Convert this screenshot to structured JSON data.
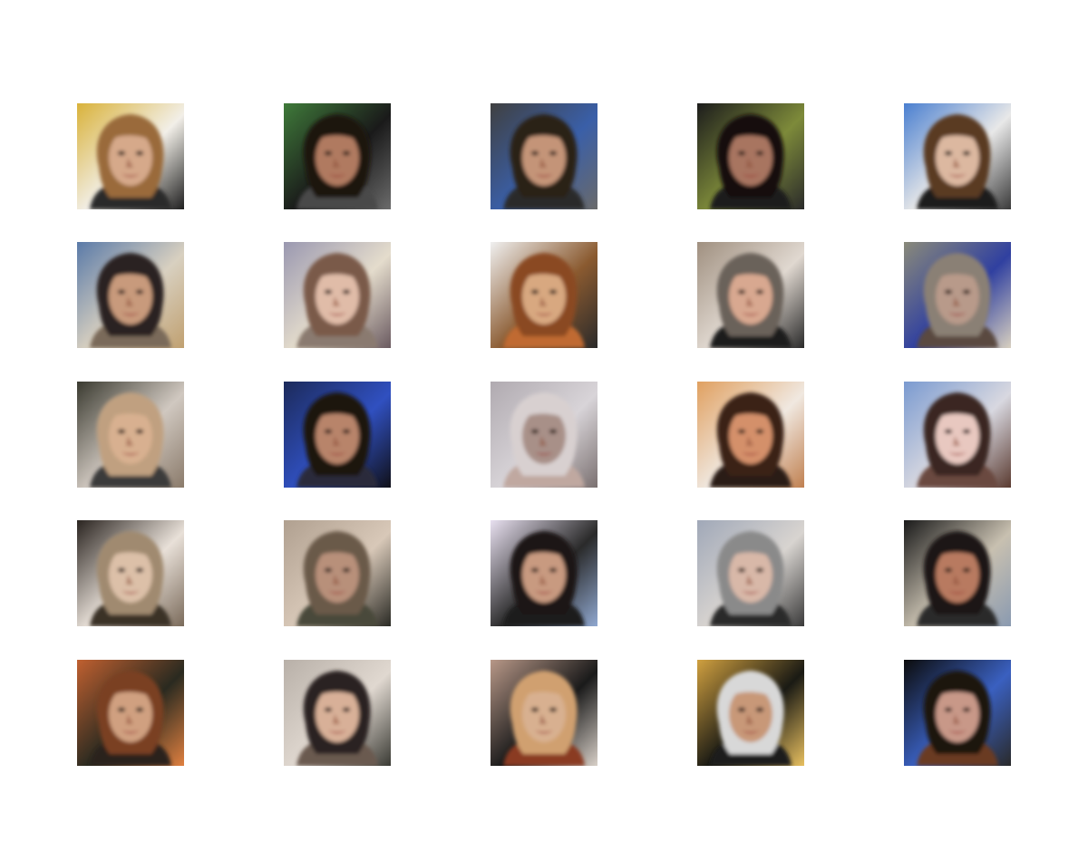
{
  "figure": {
    "grid": {
      "rows": 5,
      "cols": 5
    },
    "samples": [
      {
        "bg": [
          "#d9b23a",
          "#f2efe8",
          "#1f1f1f"
        ],
        "hair": "#9a6a3a",
        "skin": "#d6a98a",
        "shirt": "#2a2a2a"
      },
      {
        "bg": [
          "#3f7a3a",
          "#1a1a1a",
          "#6b6b6b"
        ],
        "hair": "#1c1410",
        "skin": "#b07a60",
        "shirt": "#4a4a4a"
      },
      {
        "bg": [
          "#404040",
          "#3a5fa8",
          "#6a6a6a"
        ],
        "hair": "#2a2018",
        "skin": "#c49478",
        "shirt": "#2b2b2b"
      },
      {
        "bg": [
          "#1c1c1c",
          "#7d8a3a",
          "#2a2a2a"
        ],
        "hair": "#140f0c",
        "skin": "#a87560",
        "shirt": "#1a1a1a"
      },
      {
        "bg": [
          "#4a7fd0",
          "#e8e8e8",
          "#3a3a3a"
        ],
        "hair": "#5a3a22",
        "skin": "#dcb8a0",
        "shirt": "#1f1f1f"
      },
      {
        "bg": [
          "#5a7aa8",
          "#d8d0c0",
          "#c0a070"
        ],
        "hair": "#2a2420",
        "skin": "#c89a7c",
        "shirt": "#7a6a5a"
      },
      {
        "bg": [
          "#9a98b0",
          "#e4dccc",
          "#6a5a60"
        ],
        "hair": "#7a5a48",
        "skin": "#e0bca8",
        "shirt": "#8a7a70"
      },
      {
        "bg": [
          "#f0f0f0",
          "#8a5a30",
          "#2a2a2a"
        ],
        "hair": "#8a4a22",
        "skin": "#d8a880",
        "shirt": "#c06a30"
      },
      {
        "bg": [
          "#a09080",
          "#e0d8d0",
          "#2a2a2a"
        ],
        "hair": "#6a625a",
        "skin": "#d8a890",
        "shirt": "#1a1a1a"
      },
      {
        "bg": [
          "#8a8a7a",
          "#3040a0",
          "#d8d0c0"
        ],
        "hair": "#8a8074",
        "skin": "#b89a8a",
        "shirt": "#5a4a40"
      },
      {
        "bg": [
          "#3a3a30",
          "#d0c8c0",
          "#8a7a6a"
        ],
        "hair": "#c0a080",
        "skin": "#d8b090",
        "shirt": "#3a3a3a"
      },
      {
        "bg": [
          "#1c2a5a",
          "#3050c0",
          "#101018"
        ],
        "hair": "#1a1410",
        "skin": "#b8846a",
        "shirt": "#2a2a3a"
      },
      {
        "bg": [
          "#b0aab0",
          "#d8d4d8",
          "#7a7070"
        ],
        "hair": "#d8d0d0",
        "skin": "#a89088",
        "shirt": "#c0a8a0"
      },
      {
        "bg": [
          "#e0a060",
          "#f0e8e0",
          "#c08050"
        ],
        "hair": "#3a2014",
        "skin": "#d4906a",
        "shirt": "#2a1a14"
      },
      {
        "bg": [
          "#7a9ad0",
          "#d8d8e0",
          "#5a3a30"
        ],
        "hair": "#3a2820",
        "skin": "#e8c8c0",
        "shirt": "#6a4a40"
      },
      {
        "bg": [
          "#2a2420",
          "#e8e0d8",
          "#7a6a5a"
        ],
        "hair": "#a08a70",
        "skin": "#dcc0a8",
        "shirt": "#3a3028"
      },
      {
        "bg": [
          "#b0a090",
          "#d8c8b8",
          "#2a2a24"
        ],
        "hair": "#6a5a4a",
        "skin": "#b8907a",
        "shirt": "#4a4a3a"
      },
      {
        "bg": [
          "#e8e0f0",
          "#2a2a2a",
          "#90a8d0"
        ],
        "hair": "#1a1414",
        "skin": "#c89a80",
        "shirt": "#1a1a1a"
      },
      {
        "bg": [
          "#a0a8b8",
          "#d8d4d0",
          "#3a3a3a"
        ],
        "hair": "#8a8a8a",
        "skin": "#d8b8a8",
        "shirt": "#2a2a2a"
      },
      {
        "bg": [
          "#1a1a1a",
          "#c8c0b0",
          "#8a9ab0"
        ],
        "hair": "#1a1814",
        "skin": "#b87a60",
        "shirt": "#2a2a2a"
      },
      {
        "bg": [
          "#c06030",
          "#2a2a20",
          "#e08040"
        ],
        "hair": "#7a4020",
        "skin": "#d0a080",
        "shirt": "#2a201a"
      },
      {
        "bg": [
          "#b8b0a8",
          "#e0d8d0",
          "#3a3a34"
        ],
        "hair": "#2a2420",
        "skin": "#d8b098",
        "shirt": "#6a5a50"
      },
      {
        "bg": [
          "#b89888",
          "#1a1a1a",
          "#d8d0c8"
        ],
        "hair": "#d0a070",
        "skin": "#d8b090",
        "shirt": "#8a3a20"
      },
      {
        "bg": [
          "#d0a040",
          "#1a1a14",
          "#e8c060"
        ],
        "hair": "#d8d8d8",
        "skin": "#c89878",
        "shirt": "#1a1a1a"
      },
      {
        "bg": [
          "#0c0c0c",
          "#3a60c0",
          "#2a2a2a"
        ],
        "hair": "#1a1410",
        "skin": "#c89888",
        "shirt": "#6a3a20"
      }
    ]
  }
}
